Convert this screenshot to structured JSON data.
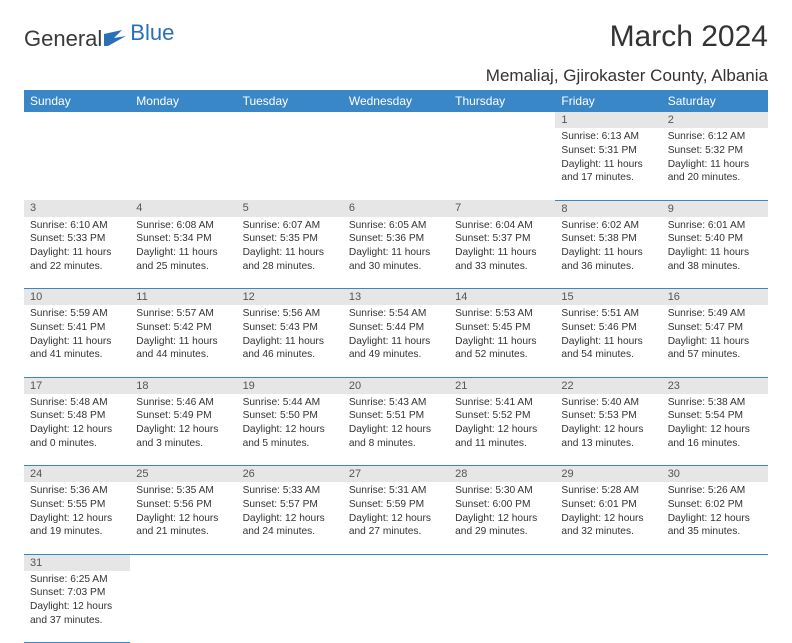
{
  "brand": {
    "part1": "General",
    "part2": "Blue",
    "color1": "#3a3a3a",
    "color2": "#2a70b8"
  },
  "title": "March 2024",
  "location": "Memaliaj, Gjirokaster County, Albania",
  "colors": {
    "header_bg": "#3a87c7",
    "header_fg": "#ffffff",
    "daynum_bg": "#e6e6e6",
    "daynum_fg": "#555555",
    "row_border": "#3a87c7",
    "body_text": "#333333"
  },
  "typography": {
    "title_fontsize": 30,
    "location_fontsize": 17,
    "th_fontsize": 12,
    "daynum_fontsize": 11,
    "cell_fontsize": 10.2
  },
  "weekdays": [
    "Sunday",
    "Monday",
    "Tuesday",
    "Wednesday",
    "Thursday",
    "Friday",
    "Saturday"
  ],
  "weeks": [
    [
      null,
      null,
      null,
      null,
      null,
      {
        "d": "1",
        "sr": "Sunrise: 6:13 AM",
        "ss": "Sunset: 5:31 PM",
        "dl1": "Daylight: 11 hours",
        "dl2": "and 17 minutes."
      },
      {
        "d": "2",
        "sr": "Sunrise: 6:12 AM",
        "ss": "Sunset: 5:32 PM",
        "dl1": "Daylight: 11 hours",
        "dl2": "and 20 minutes."
      }
    ],
    [
      {
        "d": "3",
        "sr": "Sunrise: 6:10 AM",
        "ss": "Sunset: 5:33 PM",
        "dl1": "Daylight: 11 hours",
        "dl2": "and 22 minutes."
      },
      {
        "d": "4",
        "sr": "Sunrise: 6:08 AM",
        "ss": "Sunset: 5:34 PM",
        "dl1": "Daylight: 11 hours",
        "dl2": "and 25 minutes."
      },
      {
        "d": "5",
        "sr": "Sunrise: 6:07 AM",
        "ss": "Sunset: 5:35 PM",
        "dl1": "Daylight: 11 hours",
        "dl2": "and 28 minutes."
      },
      {
        "d": "6",
        "sr": "Sunrise: 6:05 AM",
        "ss": "Sunset: 5:36 PM",
        "dl1": "Daylight: 11 hours",
        "dl2": "and 30 minutes."
      },
      {
        "d": "7",
        "sr": "Sunrise: 6:04 AM",
        "ss": "Sunset: 5:37 PM",
        "dl1": "Daylight: 11 hours",
        "dl2": "and 33 minutes."
      },
      {
        "d": "8",
        "sr": "Sunrise: 6:02 AM",
        "ss": "Sunset: 5:38 PM",
        "dl1": "Daylight: 11 hours",
        "dl2": "and 36 minutes."
      },
      {
        "d": "9",
        "sr": "Sunrise: 6:01 AM",
        "ss": "Sunset: 5:40 PM",
        "dl1": "Daylight: 11 hours",
        "dl2": "and 38 minutes."
      }
    ],
    [
      {
        "d": "10",
        "sr": "Sunrise: 5:59 AM",
        "ss": "Sunset: 5:41 PM",
        "dl1": "Daylight: 11 hours",
        "dl2": "and 41 minutes."
      },
      {
        "d": "11",
        "sr": "Sunrise: 5:57 AM",
        "ss": "Sunset: 5:42 PM",
        "dl1": "Daylight: 11 hours",
        "dl2": "and 44 minutes."
      },
      {
        "d": "12",
        "sr": "Sunrise: 5:56 AM",
        "ss": "Sunset: 5:43 PM",
        "dl1": "Daylight: 11 hours",
        "dl2": "and 46 minutes."
      },
      {
        "d": "13",
        "sr": "Sunrise: 5:54 AM",
        "ss": "Sunset: 5:44 PM",
        "dl1": "Daylight: 11 hours",
        "dl2": "and 49 minutes."
      },
      {
        "d": "14",
        "sr": "Sunrise: 5:53 AM",
        "ss": "Sunset: 5:45 PM",
        "dl1": "Daylight: 11 hours",
        "dl2": "and 52 minutes."
      },
      {
        "d": "15",
        "sr": "Sunrise: 5:51 AM",
        "ss": "Sunset: 5:46 PM",
        "dl1": "Daylight: 11 hours",
        "dl2": "and 54 minutes."
      },
      {
        "d": "16",
        "sr": "Sunrise: 5:49 AM",
        "ss": "Sunset: 5:47 PM",
        "dl1": "Daylight: 11 hours",
        "dl2": "and 57 minutes."
      }
    ],
    [
      {
        "d": "17",
        "sr": "Sunrise: 5:48 AM",
        "ss": "Sunset: 5:48 PM",
        "dl1": "Daylight: 12 hours",
        "dl2": "and 0 minutes."
      },
      {
        "d": "18",
        "sr": "Sunrise: 5:46 AM",
        "ss": "Sunset: 5:49 PM",
        "dl1": "Daylight: 12 hours",
        "dl2": "and 3 minutes."
      },
      {
        "d": "19",
        "sr": "Sunrise: 5:44 AM",
        "ss": "Sunset: 5:50 PM",
        "dl1": "Daylight: 12 hours",
        "dl2": "and 5 minutes."
      },
      {
        "d": "20",
        "sr": "Sunrise: 5:43 AM",
        "ss": "Sunset: 5:51 PM",
        "dl1": "Daylight: 12 hours",
        "dl2": "and 8 minutes."
      },
      {
        "d": "21",
        "sr": "Sunrise: 5:41 AM",
        "ss": "Sunset: 5:52 PM",
        "dl1": "Daylight: 12 hours",
        "dl2": "and 11 minutes."
      },
      {
        "d": "22",
        "sr": "Sunrise: 5:40 AM",
        "ss": "Sunset: 5:53 PM",
        "dl1": "Daylight: 12 hours",
        "dl2": "and 13 minutes."
      },
      {
        "d": "23",
        "sr": "Sunrise: 5:38 AM",
        "ss": "Sunset: 5:54 PM",
        "dl1": "Daylight: 12 hours",
        "dl2": "and 16 minutes."
      }
    ],
    [
      {
        "d": "24",
        "sr": "Sunrise: 5:36 AM",
        "ss": "Sunset: 5:55 PM",
        "dl1": "Daylight: 12 hours",
        "dl2": "and 19 minutes."
      },
      {
        "d": "25",
        "sr": "Sunrise: 5:35 AM",
        "ss": "Sunset: 5:56 PM",
        "dl1": "Daylight: 12 hours",
        "dl2": "and 21 minutes."
      },
      {
        "d": "26",
        "sr": "Sunrise: 5:33 AM",
        "ss": "Sunset: 5:57 PM",
        "dl1": "Daylight: 12 hours",
        "dl2": "and 24 minutes."
      },
      {
        "d": "27",
        "sr": "Sunrise: 5:31 AM",
        "ss": "Sunset: 5:59 PM",
        "dl1": "Daylight: 12 hours",
        "dl2": "and 27 minutes."
      },
      {
        "d": "28",
        "sr": "Sunrise: 5:30 AM",
        "ss": "Sunset: 6:00 PM",
        "dl1": "Daylight: 12 hours",
        "dl2": "and 29 minutes."
      },
      {
        "d": "29",
        "sr": "Sunrise: 5:28 AM",
        "ss": "Sunset: 6:01 PM",
        "dl1": "Daylight: 12 hours",
        "dl2": "and 32 minutes."
      },
      {
        "d": "30",
        "sr": "Sunrise: 5:26 AM",
        "ss": "Sunset: 6:02 PM",
        "dl1": "Daylight: 12 hours",
        "dl2": "and 35 minutes."
      }
    ],
    [
      {
        "d": "31",
        "sr": "Sunrise: 6:25 AM",
        "ss": "Sunset: 7:03 PM",
        "dl1": "Daylight: 12 hours",
        "dl2": "and 37 minutes."
      },
      null,
      null,
      null,
      null,
      null,
      null
    ]
  ]
}
